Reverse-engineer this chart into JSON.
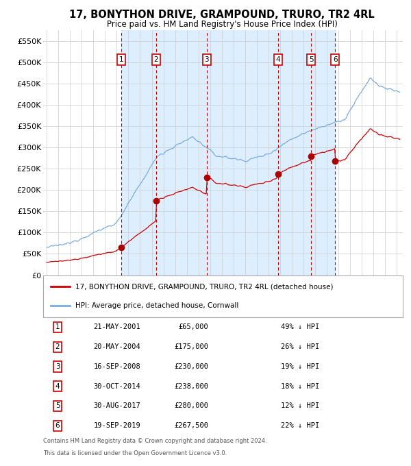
{
  "title": "17, BONYTHON DRIVE, GRAMPOUND, TRURO, TR2 4RL",
  "subtitle": "Price paid vs. HM Land Registry's House Price Index (HPI)",
  "legend_line1": "17, BONYTHON DRIVE, GRAMPOUND, TRURO, TR2 4RL (detached house)",
  "legend_line2": "HPI: Average price, detached house, Cornwall",
  "footer1": "Contains HM Land Registry data © Crown copyright and database right 2024.",
  "footer2": "This data is licensed under the Open Government Licence v3.0.",
  "sales": [
    {
      "num": 1,
      "date": "21-MAY-2001",
      "price": 65000,
      "pct": "49% ↓ HPI",
      "year_x": 2001.38
    },
    {
      "num": 2,
      "date": "20-MAY-2004",
      "price": 175000,
      "pct": "26% ↓ HPI",
      "year_x": 2004.38
    },
    {
      "num": 3,
      "date": "16-SEP-2008",
      "price": 230000,
      "pct": "19% ↓ HPI",
      "year_x": 2008.71
    },
    {
      "num": 4,
      "date": "30-OCT-2014",
      "price": 238000,
      "pct": "18% ↓ HPI",
      "year_x": 2014.83
    },
    {
      "num": 5,
      "date": "30-AUG-2017",
      "price": 280000,
      "pct": "12% ↓ HPI",
      "year_x": 2017.66
    },
    {
      "num": 6,
      "date": "19-SEP-2019",
      "price": 267500,
      "pct": "22% ↓ HPI",
      "year_x": 2019.71
    }
  ],
  "hpi_color": "#7aacdc",
  "price_color": "#cc0000",
  "marker_color": "#aa0000",
  "dashed_color": "#cc0000",
  "shade_color": "#ddeeff",
  "grid_color": "#cccccc",
  "bg_color": "#ffffff",
  "ylim": [
    0,
    575000
  ],
  "xlim_start": 1994.7,
  "xlim_end": 2025.5,
  "yticks": [
    0,
    50000,
    100000,
    150000,
    200000,
    250000,
    300000,
    350000,
    400000,
    450000,
    500000,
    550000
  ]
}
